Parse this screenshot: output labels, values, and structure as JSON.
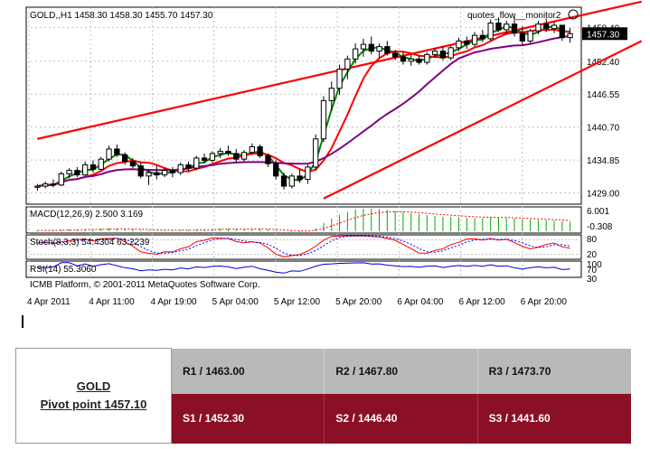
{
  "chart_data": {
    "type": "candlestick",
    "symbol_header": "GOLD,,H1  1458.30 1458.30 1455.70 1457.30",
    "indicator_name": "quotes_flow__monitor2",
    "current_price": "1457.30",
    "price_ticks": [
      "1458.40",
      "1452.40",
      "1446.55",
      "1440.70",
      "1434.85",
      "1429.00"
    ],
    "price_axis_range": [
      1427,
      1462
    ],
    "time_ticks": [
      "4 Apr 2011",
      "4 Apr 11:00",
      "4 Apr 19:00",
      "5 Apr 04:00",
      "5 Apr 12:00",
      "5 Apr 20:00",
      "6 Apr 04:00",
      "6 Apr 12:00",
      "6 Apr 20:00"
    ],
    "candles_ohlc": [
      [
        1430.0,
        1430.6,
        1429.4,
        1430.2
      ],
      [
        1430.2,
        1431.0,
        1429.8,
        1430.6
      ],
      [
        1430.6,
        1431.4,
        1430.0,
        1430.4
      ],
      [
        1430.4,
        1432.8,
        1430.2,
        1432.4
      ],
      [
        1432.4,
        1433.4,
        1431.6,
        1433.0
      ],
      [
        1433.0,
        1433.6,
        1431.8,
        1432.2
      ],
      [
        1432.2,
        1434.6,
        1432.0,
        1434.0
      ],
      [
        1434.0,
        1434.8,
        1432.6,
        1433.2
      ],
      [
        1433.2,
        1435.4,
        1433.0,
        1435.0
      ],
      [
        1435.0,
        1437.4,
        1434.6,
        1436.8
      ],
      [
        1436.8,
        1437.6,
        1435.4,
        1435.8
      ],
      [
        1435.8,
        1436.2,
        1434.0,
        1434.6
      ],
      [
        1434.6,
        1435.2,
        1433.4,
        1433.8
      ],
      [
        1433.8,
        1434.4,
        1431.6,
        1432.0
      ],
      [
        1432.0,
        1433.0,
        1430.4,
        1432.6
      ],
      [
        1432.6,
        1433.8,
        1431.4,
        1432.2
      ],
      [
        1432.2,
        1433.4,
        1431.8,
        1433.0
      ],
      [
        1433.0,
        1433.6,
        1431.8,
        1432.6
      ],
      [
        1432.6,
        1434.4,
        1432.2,
        1434.0
      ],
      [
        1434.0,
        1434.6,
        1432.8,
        1433.4
      ],
      [
        1433.4,
        1435.6,
        1433.0,
        1435.2
      ],
      [
        1435.2,
        1436.0,
        1434.2,
        1434.8
      ],
      [
        1434.8,
        1436.4,
        1434.4,
        1436.0
      ],
      [
        1436.0,
        1437.0,
        1435.2,
        1436.4
      ],
      [
        1436.4,
        1437.4,
        1435.6,
        1436.0
      ],
      [
        1436.0,
        1436.8,
        1434.4,
        1435.0
      ],
      [
        1435.0,
        1436.6,
        1434.6,
        1436.2
      ],
      [
        1436.2,
        1437.8,
        1435.8,
        1437.2
      ],
      [
        1437.2,
        1437.6,
        1435.2,
        1435.6
      ],
      [
        1435.6,
        1436.0,
        1433.6,
        1434.2
      ],
      [
        1434.2,
        1434.8,
        1431.4,
        1432.0
      ],
      [
        1432.0,
        1432.6,
        1429.6,
        1430.2
      ],
      [
        1430.2,
        1432.4,
        1429.8,
        1432.0
      ],
      [
        1432.0,
        1433.2,
        1430.8,
        1431.4
      ],
      [
        1431.4,
        1434.0,
        1430.6,
        1433.6
      ],
      [
        1433.6,
        1439.4,
        1433.0,
        1438.6
      ],
      [
        1438.6,
        1446.2,
        1438.0,
        1445.4
      ],
      [
        1445.4,
        1448.8,
        1443.6,
        1447.6
      ],
      [
        1447.6,
        1451.8,
        1446.4,
        1451.0
      ],
      [
        1451.0,
        1453.4,
        1449.2,
        1452.8
      ],
      [
        1452.8,
        1455.6,
        1452.0,
        1454.6
      ],
      [
        1454.6,
        1456.4,
        1453.2,
        1455.4
      ],
      [
        1455.4,
        1456.8,
        1453.6,
        1454.2
      ],
      [
        1454.2,
        1455.6,
        1453.0,
        1455.0
      ],
      [
        1455.0,
        1456.0,
        1453.4,
        1453.8
      ],
      [
        1453.8,
        1454.4,
        1452.6,
        1453.2
      ],
      [
        1453.2,
        1454.0,
        1451.8,
        1452.4
      ],
      [
        1452.4,
        1453.6,
        1451.6,
        1452.8
      ],
      [
        1452.8,
        1453.4,
        1451.8,
        1452.2
      ],
      [
        1452.2,
        1454.0,
        1451.8,
        1453.6
      ],
      [
        1453.6,
        1454.8,
        1453.0,
        1454.2
      ],
      [
        1454.2,
        1455.0,
        1452.6,
        1453.0
      ],
      [
        1453.0,
        1455.2,
        1452.6,
        1454.8
      ],
      [
        1454.8,
        1456.6,
        1454.2,
        1456.0
      ],
      [
        1456.0,
        1456.8,
        1454.6,
        1455.4
      ],
      [
        1455.4,
        1457.6,
        1455.0,
        1457.0
      ],
      [
        1457.0,
        1458.0,
        1455.8,
        1456.4
      ],
      [
        1456.4,
        1459.8,
        1456.0,
        1459.2
      ],
      [
        1459.2,
        1460.2,
        1457.6,
        1458.0
      ],
      [
        1458.0,
        1459.6,
        1457.2,
        1459.0
      ],
      [
        1459.0,
        1460.4,
        1456.8,
        1457.4
      ],
      [
        1457.4,
        1458.6,
        1455.2,
        1456.0
      ],
      [
        1456.0,
        1458.2,
        1455.6,
        1457.8
      ],
      [
        1457.8,
        1459.6,
        1457.2,
        1459.0
      ],
      [
        1459.0,
        1460.0,
        1457.6,
        1458.2
      ],
      [
        1458.2,
        1459.4,
        1457.4,
        1458.8
      ],
      [
        1458.8,
        1458.8,
        1456.0,
        1456.6
      ],
      [
        1456.6,
        1458.3,
        1455.7,
        1457.3
      ]
    ],
    "channel_lines": [
      {
        "name": "upper-channel",
        "from": [
          0,
          1438.6
        ],
        "to": [
          80,
          1463.0
        ],
        "color": "#ff0000"
      },
      {
        "name": "lower-channel",
        "from": [
          36,
          1428.0
        ],
        "to": [
          80,
          1456.0
        ],
        "color": "#ff0000"
      }
    ],
    "moving_averages": [
      {
        "color": "#008000",
        "period": 3
      },
      {
        "color": "#ff0000",
        "period": 7
      },
      {
        "color": "#800080",
        "period": 18
      }
    ],
    "macd": {
      "label": "MACD(12,26,9) 2.500 3.169",
      "ticks": [
        "6.001",
        "-0.308"
      ],
      "histogram": [
        0.2,
        0.3,
        0.2,
        0.4,
        0.5,
        0.4,
        0.6,
        0.5,
        0.7,
        0.8,
        0.7,
        0.6,
        0.5,
        0.3,
        0.2,
        0.1,
        0.1,
        0.2,
        0.3,
        0.3,
        0.4,
        0.5,
        0.6,
        0.7,
        0.7,
        0.6,
        0.6,
        0.7,
        0.6,
        0.5,
        0.2,
        -0.1,
        -0.2,
        -0.2,
        0.0,
        0.8,
        2.2,
        3.4,
        4.4,
        5.2,
        5.8,
        6.0,
        6.0,
        5.9,
        5.7,
        5.4,
        5.1,
        4.8,
        4.5,
        4.3,
        4.1,
        3.9,
        3.8,
        3.7,
        3.6,
        3.5,
        3.5,
        3.6,
        3.6,
        3.5,
        3.4,
        3.2,
        3.1,
        3.0,
        2.9,
        2.8,
        2.7,
        2.5
      ],
      "signal_color": "#ff0000",
      "hist_color": "#00aa00"
    },
    "stochastic": {
      "label": "Stoch(8,3,3) 54.4304 63.2239",
      "ticks": [
        "80",
        "20"
      ]
    },
    "rsi": {
      "label": "RSI(14) 55.3060",
      "ticks": [
        "100",
        "70",
        "30"
      ]
    },
    "copyright": "ICMB Platform, © 2001-2011 MetaQuotes Software Corp.",
    "colors": {
      "bull": "#ffffff",
      "bear": "#000000",
      "channel": "#ff0000",
      "grid": "#c0c0c0"
    }
  },
  "pivot": {
    "symbol": "GOLD",
    "pivot_label": "Pivot point 1457.10",
    "resistance": [
      "R1 / 1463.00",
      "R2 / 1467.80",
      "R3 / 1473.70"
    ],
    "support": [
      "S1 / 1452.30",
      "S2 / 1446.40",
      "S3 / 1441.60"
    ]
  }
}
